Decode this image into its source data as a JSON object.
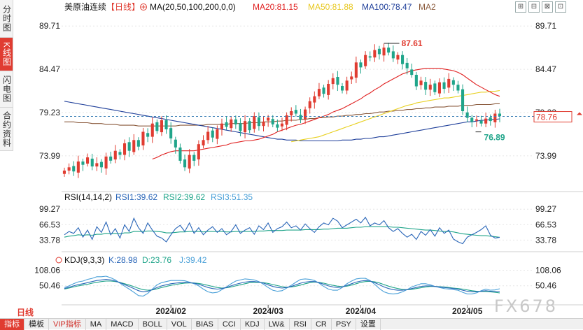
{
  "sidebar": {
    "tabs": [
      {
        "label": "分时图",
        "active": false
      },
      {
        "label": "K线图",
        "active": true
      },
      {
        "label": "闪电图",
        "active": false
      },
      {
        "label": "合约资料",
        "active": false
      }
    ]
  },
  "header": {
    "symbol": "美原油连续",
    "period": "【日线】",
    "ma_label": "MA(20,50,100,200,0,0)",
    "ma20": "MA20:81.15",
    "ma50": "MA50:81.88",
    "ma100": "MA100:78.47",
    "ma2": "MA2",
    "window_icons": [
      "⊞",
      "⊟",
      "⊠",
      "⊡"
    ]
  },
  "rsi_header": {
    "label": "RSI(14,14,2)",
    "rsi1": "RSI1:39.62",
    "rsi2": "RSI2:39.62",
    "rsi3": "RSI3:51.35"
  },
  "kdj_header": {
    "label": "KDJ(9,3,3)",
    "k": "K:28.98",
    "d": "D:23.76",
    "j": "J:39.42"
  },
  "annotations": {
    "high_label": "87.61",
    "low_label": "76.89",
    "current_price": "78.76"
  },
  "mode_label": "日线",
  "watermark": "FX678",
  "toolbar": {
    "items": [
      "指标",
      "模板",
      "VIP指标",
      "MA",
      "MACD",
      "BOLL",
      "VOL",
      "BIAS",
      "CCI",
      "KDJ",
      "LW&",
      "RSI",
      "CR",
      "PSY",
      "设置"
    ]
  },
  "colors": {
    "up": "#e03c31",
    "down": "#20a58a",
    "ma20": "#e02020",
    "ma50": "#e8d020",
    "ma100": "#1f3f9a",
    "ma200": "#8a5a3c",
    "rsi1": "#2a66b8",
    "rsi2": "#20a58a",
    "kdj_k": "#2a66b8",
    "kdj_d": "#20a58a",
    "kdj_j": "#4aa0d8"
  },
  "chart_data": [
    {
      "type": "candlestick",
      "title": "美原油连续 日线",
      "ylim": [
        70.0,
        91.0
      ],
      "yticks": [
        "89.71",
        "84.47",
        "79.23",
        "73.99"
      ],
      "ytick_values": [
        89.71,
        84.47,
        79.23,
        73.99
      ],
      "xticks": [
        "2024/02",
        "2024/03",
        "2024/04",
        "2024/05"
      ],
      "xtick_index": [
        23,
        44,
        64,
        87
      ],
      "n_bars": 95,
      "close": [
        72.2,
        72.6,
        72.1,
        73.3,
        72.9,
        73.8,
        72.7,
        73.1,
        72.6,
        73.9,
        73.4,
        74.6,
        74.1,
        75.5,
        74.6,
        75.9,
        75.1,
        76.9,
        76.3,
        77.9,
        77.0,
        78.3,
        77.2,
        76.1,
        75.0,
        73.4,
        72.6,
        74.1,
        73.4,
        75.4,
        75.9,
        76.9,
        76.2,
        77.2,
        77.9,
        77.5,
        78.4,
        77.8,
        77.0,
        78.2,
        77.1,
        78.8,
        77.6,
        78.1,
        78.6,
        77.8,
        77.4,
        77.9,
        78.9,
        79.4,
        79.1,
        78.4,
        79.6,
        80.6,
        81.2,
        82.1,
        81.5,
        82.7,
        83.4,
        82.6,
        81.9,
        83.1,
        83.6,
        85.3,
        84.7,
        86.2,
        85.9,
        86.8,
        86.3,
        87.1,
        86.5,
        85.8,
        86.2,
        85.1,
        84.6,
        83.8,
        82.4,
        83.1,
        82.0,
        82.6,
        81.7,
        82.9,
        82.1,
        83.3,
        82.6,
        81.9,
        79.4,
        78.6,
        78.1,
        78.4,
        77.9,
        78.5,
        78.2,
        79.1,
        78.8
      ],
      "ma20": [
        null,
        null,
        null,
        null,
        null,
        null,
        null,
        null,
        null,
        null,
        null,
        null,
        null,
        null,
        null,
        null,
        null,
        null,
        null,
        73.6,
        73.8,
        74.1,
        74.3,
        74.5,
        74.6,
        74.6,
        74.6,
        74.6,
        74.6,
        74.7,
        74.8,
        74.9,
        75.0,
        75.1,
        75.2,
        75.3,
        75.5,
        75.6,
        75.7,
        75.8,
        75.8,
        75.9,
        76.0,
        76.2,
        76.4,
        76.6,
        76.9,
        77.1,
        77.3,
        77.5,
        77.7,
        77.8,
        78.0,
        78.2,
        78.4,
        78.6,
        78.8,
        79.0,
        79.3,
        79.5,
        79.7,
        80.0,
        80.3,
        80.6,
        80.9,
        81.3,
        81.6,
        82.0,
        82.3,
        82.7,
        83.0,
        83.3,
        83.6,
        83.9,
        84.1,
        84.3,
        84.4,
        84.5,
        84.6,
        84.6,
        84.6,
        84.6,
        84.5,
        84.4,
        84.3,
        84.1,
        83.8,
        83.4,
        83.0,
        82.6,
        82.3,
        82.0,
        81.7,
        81.4,
        81.2
      ],
      "ma50": [
        null,
        null,
        null,
        null,
        null,
        null,
        null,
        null,
        null,
        null,
        null,
        null,
        null,
        null,
        null,
        null,
        null,
        null,
        null,
        null,
        null,
        null,
        null,
        null,
        null,
        null,
        null,
        null,
        null,
        null,
        null,
        null,
        null,
        null,
        null,
        null,
        null,
        null,
        null,
        null,
        null,
        null,
        null,
        null,
        null,
        null,
        null,
        null,
        null,
        75.7,
        75.8,
        75.9,
        76.0,
        76.1,
        76.2,
        76.3,
        76.5,
        76.7,
        76.9,
        77.1,
        77.3,
        77.5,
        77.7,
        77.9,
        78.1,
        78.3,
        78.5,
        78.7,
        78.9,
        79.1,
        79.3,
        79.5,
        79.7,
        79.9,
        80.1,
        80.2,
        80.4,
        80.5,
        80.6,
        80.7,
        80.8,
        80.9,
        81.0,
        81.0,
        81.1,
        81.2,
        81.3,
        81.4,
        81.5,
        81.6,
        81.7,
        81.7,
        81.8,
        81.8,
        81.9
      ],
      "ma100": [
        80.6,
        80.5,
        80.4,
        80.3,
        80.2,
        80.1,
        80.0,
        79.9,
        79.8,
        79.7,
        79.6,
        79.5,
        79.4,
        79.3,
        79.2,
        79.1,
        79.0,
        78.9,
        78.8,
        78.7,
        78.6,
        78.5,
        78.4,
        78.3,
        78.2,
        78.1,
        78.0,
        77.9,
        77.8,
        77.7,
        77.6,
        77.5,
        77.4,
        77.3,
        77.2,
        77.1,
        77.0,
        76.9,
        76.8,
        76.7,
        76.6,
        76.5,
        76.4,
        76.3,
        76.2,
        76.1,
        76.0,
        76.0,
        75.9,
        75.9,
        75.9,
        75.8,
        75.8,
        75.8,
        75.8,
        75.8,
        75.8,
        75.8,
        75.8,
        75.8,
        75.9,
        75.9,
        75.9,
        76.0,
        76.0,
        76.1,
        76.1,
        76.2,
        76.3,
        76.3,
        76.4,
        76.5,
        76.6,
        76.7,
        76.8,
        76.9,
        77.0,
        77.1,
        77.2,
        77.3,
        77.4,
        77.5,
        77.6,
        77.7,
        77.8,
        77.9,
        78.0,
        78.1,
        78.1,
        78.2,
        78.3,
        78.3,
        78.4,
        78.4,
        78.47
      ],
      "ma200": [
        78.1,
        78.1,
        78.1,
        78.0,
        78.0,
        78.0,
        77.9,
        77.9,
        77.9,
        77.8,
        77.8,
        77.8,
        77.7,
        77.7,
        77.7,
        77.7,
        77.6,
        77.6,
        77.6,
        77.6,
        77.6,
        77.6,
        77.6,
        77.6,
        77.6,
        77.7,
        77.7,
        77.7,
        77.7,
        77.7,
        77.7,
        77.8,
        77.8,
        77.8,
        77.8,
        77.8,
        77.9,
        77.9,
        77.9,
        77.9,
        78.0,
        78.0,
        78.0,
        78.1,
        78.1,
        78.1,
        78.2,
        78.2,
        78.3,
        78.3,
        78.3,
        78.4,
        78.4,
        78.5,
        78.5,
        78.6,
        78.6,
        78.7,
        78.7,
        78.8,
        78.8,
        78.9,
        78.9,
        79.0,
        79.0,
        79.1,
        79.1,
        79.2,
        79.3,
        79.3,
        79.4,
        79.4,
        79.5,
        79.5,
        79.6,
        79.6,
        79.7,
        79.7,
        79.8,
        79.8,
        79.9,
        79.9,
        79.9,
        80.0,
        80.0,
        80.0,
        80.1,
        80.1,
        80.1,
        80.2,
        80.2,
        80.2,
        80.2,
        80.3,
        80.3
      ],
      "high_value": 87.61,
      "low_value": 76.89,
      "current_value": 78.76
    },
    {
      "type": "line",
      "title": "RSI(14,14,2)",
      "ylim": [
        15,
        110
      ],
      "yticks": [
        "99.27",
        "66.53",
        "33.78"
      ],
      "ytick_values": [
        99.27,
        66.53,
        33.78
      ],
      "series": [
        {
          "name": "RSI1",
          "values": [
            45,
            52,
            48,
            60,
            40,
            55,
            35,
            62,
            50,
            72,
            45,
            58,
            38,
            66,
            52,
            80,
            60,
            48,
            70,
            55,
            42,
            38,
            30,
            45,
            58,
            65,
            52,
            70,
            48,
            60,
            45,
            55,
            62,
            50,
            58,
            45,
            52,
            66,
            48,
            55,
            60,
            46,
            64,
            56,
            70,
            50,
            58,
            62,
            72,
            60,
            64,
            55,
            68,
            58,
            50,
            62,
            70,
            66,
            80,
            74,
            60,
            66,
            72,
            78,
            70,
            82,
            64,
            70,
            66,
            75,
            60,
            52,
            58,
            48,
            40,
            46,
            35,
            52,
            44,
            56,
            42,
            60,
            48,
            55,
            36,
            30,
            26,
            40,
            45,
            50,
            56,
            64,
            44,
            38,
            39.62
          ]
        },
        {
          "name": "RSI2",
          "values": [
            40,
            42,
            43,
            45,
            44,
            45,
            44,
            46,
            46,
            48,
            47,
            48,
            47,
            49,
            49,
            52,
            52,
            52,
            53,
            53,
            52,
            51,
            49,
            49,
            50,
            51,
            51,
            52,
            52,
            52,
            51,
            52,
            52,
            52,
            52,
            51,
            51,
            52,
            52,
            52,
            52,
            52,
            53,
            53,
            54,
            54,
            54,
            54,
            55,
            55,
            55,
            55,
            56,
            56,
            56,
            56,
            57,
            57,
            58,
            59,
            59,
            59,
            60,
            61,
            61,
            62,
            62,
            62,
            62,
            62,
            62,
            61,
            61,
            60,
            59,
            58,
            57,
            56,
            55,
            55,
            54,
            53,
            52,
            52,
            51,
            49,
            47,
            46,
            45,
            44,
            43,
            43,
            42,
            41,
            39.62
          ]
        }
      ],
      "rsi3_value": 51.35
    },
    {
      "type": "line",
      "title": "KDJ(9,3,3)",
      "ylim": [
        -10,
        125
      ],
      "yticks": [
        "108.06",
        "50.46"
      ],
      "ytick_values": [
        108.06,
        50.46
      ],
      "series": [
        {
          "name": "K",
          "values": [
            40,
            45,
            50,
            55,
            58,
            62,
            66,
            70,
            72,
            74,
            72,
            68,
            62,
            55,
            48,
            40,
            32,
            28,
            30,
            36,
            44,
            50,
            54,
            58,
            60,
            62,
            63,
            62,
            60,
            56,
            50,
            44,
            40,
            38,
            40,
            44,
            50,
            56,
            60,
            64,
            66,
            66,
            64,
            60,
            54,
            48,
            44,
            42,
            44,
            48,
            54,
            60,
            64,
            66,
            66,
            62,
            56,
            50,
            46,
            44,
            46,
            52,
            58,
            64,
            68,
            70,
            68,
            62,
            54,
            46,
            40,
            36,
            34,
            34,
            36,
            40,
            44,
            48,
            50,
            50,
            48,
            46,
            44,
            42,
            40,
            38,
            34,
            30,
            28,
            28,
            30,
            32,
            30,
            29,
            28.98
          ]
        },
        {
          "name": "D",
          "values": [
            38,
            42,
            46,
            50,
            53,
            56,
            60,
            63,
            66,
            68,
            68,
            66,
            63,
            58,
            53,
            47,
            41,
            36,
            34,
            35,
            39,
            44,
            48,
            52,
            55,
            58,
            60,
            61,
            61,
            59,
            56,
            52,
            48,
            44,
            42,
            43,
            46,
            50,
            54,
            58,
            62,
            63,
            63,
            62,
            59,
            55,
            51,
            47,
            45,
            46,
            49,
            53,
            58,
            62,
            64,
            63,
            60,
            56,
            52,
            49,
            47,
            49,
            53,
            58,
            63,
            66,
            67,
            65,
            61,
            55,
            49,
            44,
            40,
            37,
            36,
            37,
            40,
            43,
            46,
            48,
            48,
            47,
            46,
            44,
            42,
            40,
            38,
            35,
            32,
            30,
            29,
            29,
            28,
            26,
            23.76
          ]
        },
        {
          "name": "J",
          "values": [
            44,
            50,
            58,
            65,
            68,
            74,
            78,
            84,
            84,
            86,
            80,
            72,
            60,
            49,
            38,
            26,
            14,
            12,
            22,
            38,
            54,
            62,
            66,
            70,
            70,
            70,
            69,
            64,
            58,
            50,
            38,
            28,
            24,
            26,
            36,
            46,
            58,
            68,
            72,
            76,
            74,
            72,
            66,
            56,
            44,
            34,
            30,
            32,
            42,
            52,
            64,
            74,
            76,
            74,
            70,
            60,
            48,
            38,
            34,
            34,
            44,
            58,
            68,
            76,
            78,
            78,
            70,
            56,
            40,
            28,
            22,
            20,
            22,
            28,
            36,
            46,
            52,
            58,
            58,
            54,
            48,
            44,
            40,
            38,
            36,
            34,
            26,
            20,
            20,
            24,
            32,
            38,
            34,
            35,
            39.42
          ]
        }
      ]
    }
  ]
}
